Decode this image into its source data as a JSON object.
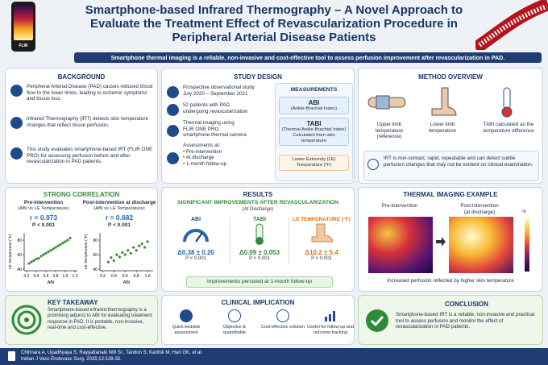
{
  "header": {
    "title": "Smartphone-based Infrared Thermography – A Novel Approach to Evaluate the Treatment Effect of Revascularization Procedure in Peripheral Arterial Disease Patients",
    "subtitle": "Smartphone thermal imaging is a reliable, non-invasive and cost-effective tool to assess perfusion improvement after revascularization in PAD.",
    "phone_brand": "FLIR"
  },
  "background": {
    "title": "BACKGROUND",
    "items": [
      "Peripheral Arterial Disease (PAD) causes reduced blood flow to the lower limbs, leading to ischemic symptoms and tissue loss.",
      "Infrared Thermography (IRT) detects skin temperature changes that reflect tissue perfusion.",
      "This study evaluates smartphone-based IRT (FLIR ONE PRO) for assessing perfusion before and after revascularization in PAD patients."
    ]
  },
  "study_design": {
    "title": "STUDY DESIGN",
    "items": [
      [
        "Prospective observational study",
        "July 2020 – September 2021"
      ],
      [
        "52 patients with PAD",
        "undergoing revascularization"
      ],
      [
        "Thermal imaging using",
        "FLIR ONE PRO",
        "smartphone thermal camera"
      ]
    ],
    "assessments": {
      "label": "Assessments at:",
      "list": [
        "Pre-intervention",
        "At discharge",
        "1-month follow-up"
      ]
    }
  },
  "measurements": {
    "title": "MEASUREMENTS",
    "items": [
      {
        "name": "ABI",
        "desc": [
          "(Ankle-Brachial Index)"
        ]
      },
      {
        "name": "TABI",
        "desc": [
          "(Thermal Ankle-Brachial Index)",
          "Calculated from skin temperature"
        ]
      },
      {
        "name": "Lower Extremity (LE) Temperature (°F)",
        "desc": []
      }
    ]
  },
  "method": {
    "title": "METHOD OVERVIEW",
    "upper": "Upper limb temperature (reference)",
    "lower": "Lower limb temperature",
    "tabi": "TABI calculated as the temperature difference",
    "note": "IRT is non-contact, rapid, repeatable and can detect subtle perfusion changes that may not be evident on clinical examination."
  },
  "correlation": {
    "title": "STRONG CORRELATION",
    "charts": [
      {
        "type": "scatter",
        "title": "Pre-intervention",
        "subtitle": "(ABI vs LE Temperature)",
        "r": "r = 0.973",
        "p": "P < 0.001",
        "xlabel": "ABI",
        "ylabel": "LE Temperature (°F)",
        "xlim": [
          0.15,
          1.25
        ],
        "ylim": [
          38,
          90
        ],
        "xticks": [
          0.2,
          0.4,
          0.6,
          0.8,
          {
            "value": 1,
            "label": "1.0"
          },
          1.2
        ],
        "yticks": [
          40,
          60,
          80
        ],
        "color": "#3a8a3a",
        "x": [
          0.25,
          0.3,
          0.35,
          0.4,
          0.45,
          0.5,
          0.55,
          0.6,
          0.65,
          0.7,
          0.75,
          0.8,
          0.85,
          0.9,
          0.95,
          1.0,
          1.05,
          1.1
        ],
        "y": [
          48,
          50,
          52,
          54,
          55,
          58,
          60,
          62,
          64,
          66,
          68,
          70,
          72,
          74,
          76,
          78,
          80,
          83
        ]
      },
      {
        "type": "scatter",
        "title": "Post-intervention at discharge",
        "subtitle": "(ABI vs LE Temperature)",
        "r": "r = 0.682",
        "p": "P < 0.001",
        "xlabel": "ABI",
        "ylabel": "LE Temperature (°F)",
        "xlim": [
          0.15,
          1.1
        ],
        "ylim": [
          38,
          90
        ],
        "xticks": [
          0.2,
          0.4,
          0.6,
          0.8,
          {
            "value": 1,
            "label": "1.0"
          }
        ],
        "yticks": [
          40,
          60,
          80
        ],
        "color": "#3a8a3a",
        "x": [
          0.3,
          0.35,
          0.4,
          0.45,
          0.5,
          0.55,
          0.6,
          0.65,
          0.7,
          0.75,
          0.8,
          0.85,
          0.9,
          0.95,
          1.0
        ],
        "y": [
          50,
          56,
          52,
          60,
          57,
          63,
          60,
          66,
          62,
          70,
          66,
          72,
          75,
          70,
          78
        ]
      }
    ]
  },
  "results": {
    "title": "RESULTS",
    "subtitle": "SIGNIFICANT IMPROVEMENTS AFTER REVASCULARIZATION",
    "note": "(At Discharge)",
    "metrics": [
      {
        "name": "ABI",
        "value": "Δ0.38 ± 0.20",
        "p": "P < 0.001"
      },
      {
        "name": "TABI",
        "value": "Δ0.09 ± 0.053",
        "p": "P < 0.001"
      },
      {
        "name": "LE TEMPERATURE (°F)",
        "value": "Δ10.2 ± 5.4",
        "p": "P < 0.001"
      }
    ],
    "footer": "Improvements persisted at 1-month follow-up"
  },
  "thermal": {
    "title": "THERMAL IMAGING EXAMPLE",
    "pre": "Pre-intervention",
    "post": "Post-intervention",
    "post_note": "(at discharge)",
    "unit": "°F",
    "caption": "Increased perfusion reflected by higher skin temperature"
  },
  "takeaway": {
    "title": "KEY TAKEAWAY",
    "text": "Smartphone-based infrared thermography is a promising adjunct to ABI for evaluating treatment response in PAD. It is portable, non-invasive, real-time and cost-effective."
  },
  "clinical": {
    "title": "CLINICAL IMPLICATION",
    "items": [
      "Quick bedside assessment",
      "Objective & quantifiable",
      "Cost-effective solution",
      "Useful for follow-up and outcome tracking"
    ]
  },
  "conclusion": {
    "title": "CONCLUSION",
    "text": "Smartphone-based IRT is a reliable, non-invasive and practical tool to assess perfusion and monitor the effect of revascularization in PAD patients."
  },
  "citation": {
    "authors": "Chihnara A, Upadhyaya S, Rayyattanaik NM Sr., Tandon S, Karthik M, Hari GK, et al.",
    "journal": "Indian J Vasc Endovasc Surg. 2025;12:128-32."
  }
}
